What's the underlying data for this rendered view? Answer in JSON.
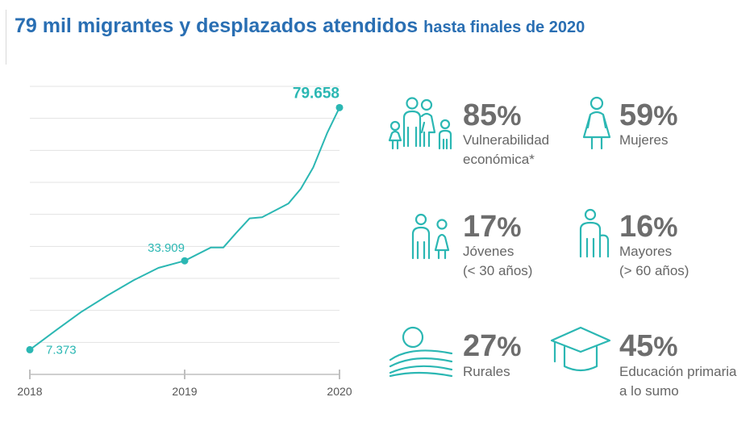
{
  "header": {
    "title_main": "79 mil migrantes y desplazados atendidos",
    "title_sub": "hasta finales de 2020"
  },
  "colors": {
    "title": "#2a6fb3",
    "teal": "#2bb7b3",
    "stat_text": "#6d6d6d",
    "grid": "#e3e3e3"
  },
  "chart_data": {
    "type": "line",
    "title": "79 mil migrantes y desplazados atendidos hasta finales de 2020",
    "xlabel": "",
    "ylabel": "",
    "x_ticks": [
      "2018",
      "2019",
      "2020"
    ],
    "xlim": [
      2018.0,
      2020.0
    ],
    "ylim": [
      0,
      86000
    ],
    "grid": true,
    "series": [
      {
        "name": "Migrantes y desplazados atendidos",
        "x": [
          2018.0,
          2018.17,
          2018.33,
          2018.5,
          2018.67,
          2018.83,
          2019.0,
          2019.17,
          2019.25,
          2019.33,
          2019.42,
          2019.5,
          2019.67,
          2019.75,
          2019.83,
          2019.92,
          2020.0
        ],
        "y": [
          7373,
          13200,
          18600,
          23500,
          28100,
          31800,
          33909,
          37900,
          37900,
          42100,
          46600,
          46900,
          51000,
          55400,
          61800,
          72000,
          79658
        ]
      }
    ],
    "annotations": [
      {
        "x": 2018.0,
        "y": 7373,
        "text": "7.373"
      },
      {
        "x": 2019.0,
        "y": 33909,
        "text": "33.909"
      },
      {
        "x": 2020.0,
        "y": 79658,
        "text": "79.658"
      }
    ]
  },
  "stats": [
    {
      "value": "85",
      "unit": "%",
      "label": [
        "Vulnerabilidad",
        "económica*"
      ],
      "icon": "family-icon"
    },
    {
      "value": "59",
      "unit": "%",
      "label": [
        "Mujeres"
      ],
      "icon": "woman-icon"
    },
    {
      "value": "17",
      "unit": "%",
      "label": [
        "Jóvenes",
        "(< 30 años)"
      ],
      "icon": "youth-icon"
    },
    {
      "value": "16",
      "unit": "%",
      "label": [
        "Mayores",
        "(> 60 años)"
      ],
      "icon": "elderly-icon"
    },
    {
      "value": "27",
      "unit": "%",
      "label": [
        "Rurales"
      ],
      "icon": "rural-landscape-icon"
    },
    {
      "value": "45",
      "unit": "%",
      "label": [
        "Educación primaria",
        "a lo sumo"
      ],
      "icon": "graduation-cap-icon"
    }
  ]
}
